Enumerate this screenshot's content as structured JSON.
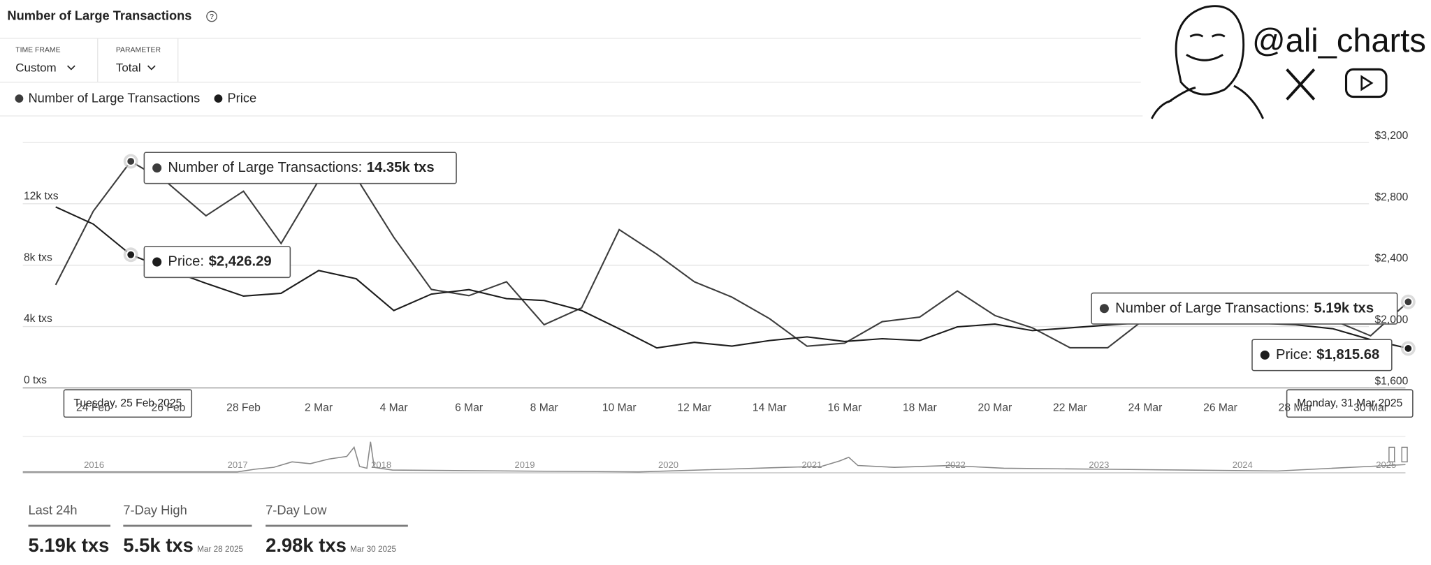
{
  "header": {
    "title": "Number of Large Transactions",
    "time_frame": {
      "label": "TIME FRAME",
      "value": "Custom"
    },
    "parameter": {
      "label": "PARAMETER",
      "value": "Total"
    }
  },
  "watermark": {
    "handle": "@ali_charts"
  },
  "chart_data": {
    "type": "line",
    "categories": [
      null,
      "24 Feb",
      null,
      "26 Feb",
      null,
      "28 Feb",
      null,
      "2 Mar",
      null,
      "4 Mar",
      null,
      "6 Mar",
      null,
      "8 Mar",
      null,
      "10 Mar",
      null,
      "12 Mar",
      null,
      "14 Mar",
      null,
      "16 Mar",
      null,
      "18 Mar",
      null,
      "20 Mar",
      null,
      "22 Mar",
      null,
      "24 Mar",
      null,
      "26 Mar",
      null,
      "28 Mar",
      null,
      "30 Mar",
      null
    ],
    "series": [
      {
        "name": "Number of Large Transactions",
        "color": "#3c3c3c",
        "values": [
          6300,
          11100,
          14350,
          12900,
          10800,
          12400,
          9000,
          13100,
          13300,
          9400,
          6000,
          5600,
          6500,
          3700,
          4800,
          9900,
          8300,
          6500,
          5500,
          4100,
          2300,
          2500,
          3900,
          4200,
          5900,
          4300,
          3500,
          2200,
          2200,
          4100,
          4300,
          4400,
          4100,
          5500,
          4000,
          2980,
          5190
        ]
      },
      {
        "name": "Price",
        "color": "#1c1c1c",
        "axis": "y2",
        "values": [
          2738,
          2626,
          2426.29,
          2330,
          2240,
          2157,
          2175,
          2323,
          2270,
          2063,
          2170,
          2199,
          2140,
          2128,
          2063,
          1944,
          1819,
          1855,
          1831,
          1867,
          1891,
          1861,
          1879,
          1867,
          1956,
          1974,
          1932,
          1950,
          1968,
          1985,
          1990,
          2000,
          1980,
          1970,
          1944,
          1873,
          1815.68
        ]
      }
    ],
    "ylim": [
      0,
      16000
    ],
    "yticks": [
      {
        "value": 0,
        "label": "0 txs"
      },
      {
        "value": 4000,
        "label": "4k txs"
      },
      {
        "value": 8000,
        "label": "8k txs"
      },
      {
        "value": 12000,
        "label": "12k txs"
      }
    ],
    "y2lim": [
      1600,
      3200
    ],
    "y2ticks": [
      {
        "value": 1600,
        "label": "$1,600"
      },
      {
        "value": 2000,
        "label": "$2,000"
      },
      {
        "value": 2400,
        "label": "$2,400"
      },
      {
        "value": 2800,
        "label": "$2,800"
      },
      {
        "value": 3200,
        "label": "$3,200"
      }
    ],
    "grid": true,
    "legend": "top-left",
    "tooltips": [
      {
        "date": "Tuesday, 25 Feb 2025",
        "items": [
          {
            "label": "Number of Large Transactions:",
            "value_label": "14.35k txs"
          },
          {
            "label": "Price:",
            "value_label": "$2,426.29"
          }
        ]
      },
      {
        "date": "Monday, 31 Mar 2025",
        "items": [
          {
            "label": "Number of Large Transactions:",
            "value_label": "5.19k txs"
          },
          {
            "label": "Price:",
            "value_label": "$1,815.68"
          }
        ]
      }
    ]
  },
  "navigator": {
    "years": [
      "2016",
      "2017",
      "2018",
      "2019",
      "2020",
      "2021",
      "2022",
      "2023",
      "2024",
      "2025"
    ]
  },
  "stats": [
    {
      "label": "Last 24h",
      "value": "5.19k txs"
    },
    {
      "label": "7-Day High",
      "value": "5.5k txs",
      "date": "Mar 28 2025"
    },
    {
      "label": "7-Day Low",
      "value": "2.98k txs",
      "date": "Mar 30 2025"
    }
  ]
}
